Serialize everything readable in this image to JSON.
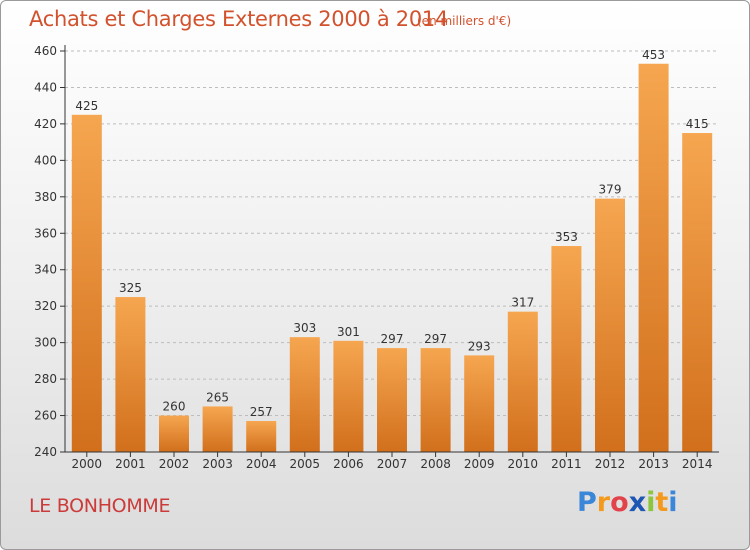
{
  "header": {
    "title": "Achats et Charges Externes 2000 à 2014",
    "unit": "(en milliers d'€)"
  },
  "footer": {
    "commune": "LE BONHOMME",
    "logo_text": "Proxiti",
    "logo_letters": [
      {
        "ch": "P",
        "color": "#3a86d8"
      },
      {
        "ch": "r",
        "color": "#f39a1e"
      },
      {
        "ch": "o",
        "color": "#e2434b"
      },
      {
        "ch": "x",
        "color": "#1e56b4"
      },
      {
        "ch": "i",
        "color": "#8cc63f"
      },
      {
        "ch": "t",
        "color": "#f39a1e"
      },
      {
        "ch": "i",
        "color": "#3a86d8"
      }
    ]
  },
  "colors": {
    "bar_light": "#f6a650",
    "bar_dark": "#d16f1c",
    "axis": "#333333",
    "grid": "#bdbdbd",
    "title": "#d2522e"
  },
  "chart_data": {
    "type": "bar",
    "title": "Achats et Charges Externes 2000 à 2014",
    "subtitle": "(en milliers d'€)",
    "xlabel": "",
    "ylabel": "",
    "categories": [
      "2000",
      "2001",
      "2002",
      "2003",
      "2004",
      "2005",
      "2006",
      "2007",
      "2008",
      "2009",
      "2010",
      "2011",
      "2012",
      "2013",
      "2014"
    ],
    "values": [
      425,
      325,
      260,
      265,
      257,
      303,
      301,
      297,
      297,
      293,
      317,
      353,
      379,
      453,
      415
    ],
    "ylim": [
      240,
      460
    ],
    "yticks": [
      240,
      260,
      280,
      300,
      320,
      340,
      360,
      380,
      400,
      420,
      440,
      460
    ],
    "grid": true,
    "data_labels": true
  }
}
